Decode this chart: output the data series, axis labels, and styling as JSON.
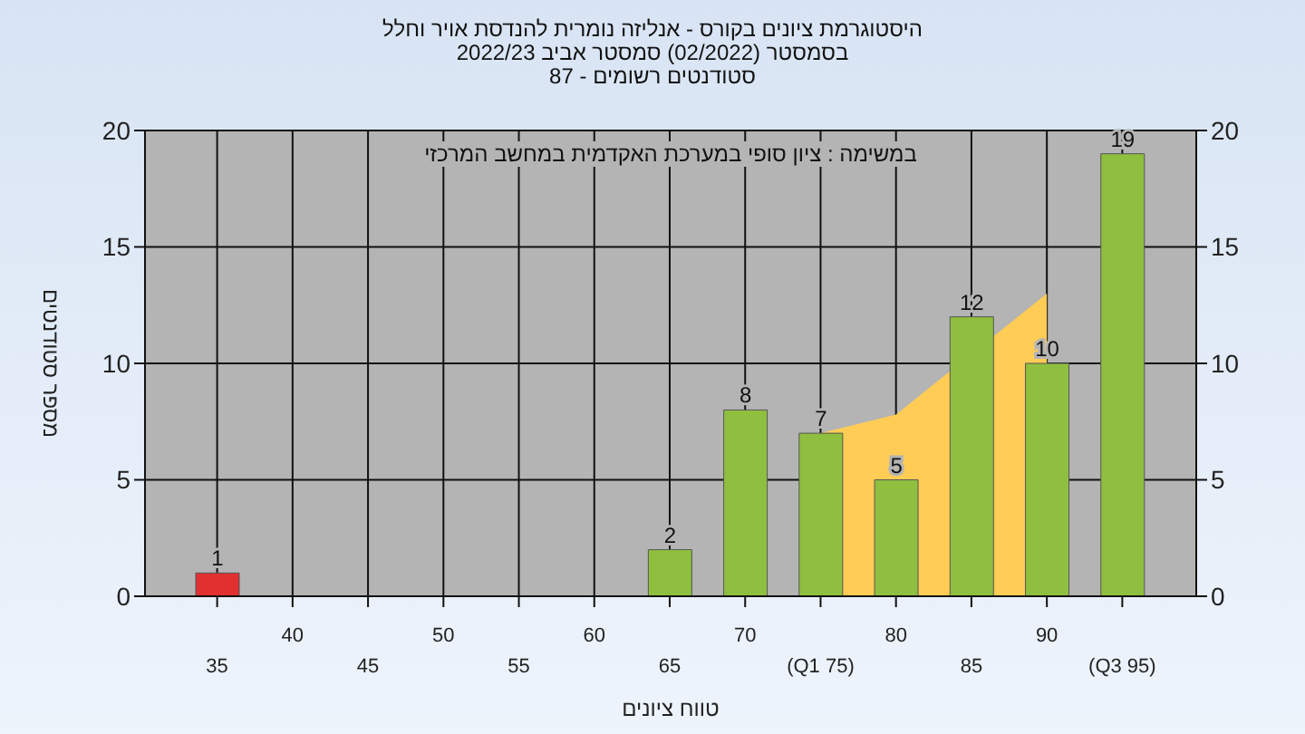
{
  "chart_data": {
    "type": "bar",
    "title": "היסטוגרמת ציונים בקורס - אנליזה נומרית להנדסת אויר וחלל",
    "subtitle": "בסמסטר  (02/2022)  סמסטר אביב 2022/23\nסטודנטים רשומים - 87",
    "xlabel": "טווח ציונים",
    "ylabel": "מספר סטודנטים",
    "annotations": [
      "במשימה : ציון סופי במערכת האקדמית במחשב המרכזי"
    ],
    "categories": [
      "35",
      "40",
      "45",
      "50",
      "55",
      "60",
      "65",
      "70",
      "(Q1 75)",
      "80",
      "85",
      "90",
      "(Q3 95)"
    ],
    "series": [
      {
        "type": "area",
        "color": "#ffcc55",
        "values": [
          null,
          null,
          null,
          null,
          null,
          null,
          null,
          null,
          7,
          7.8,
          null,
          13,
          null
        ]
      },
      {
        "colors": [
          "#e03030",
          "#8fbf3f",
          "#8fbf3f",
          "#8fbf3f",
          "#8fbf3f",
          "#8fbf3f",
          "#8fbf3f",
          "#8fbf3f",
          "#8fbf3f",
          "#8fbf3f",
          "#8fbf3f",
          "#8fbf3f",
          "#8fbf3f"
        ],
        "values": [
          1,
          0,
          0,
          0,
          0,
          0,
          2,
          8,
          7,
          5,
          12,
          10,
          19
        ],
        "value_labels": [
          "1",
          null,
          null,
          null,
          null,
          null,
          "2",
          "8",
          "7",
          "5",
          "12",
          "10",
          "19"
        ]
      }
    ],
    "ylim": [
      0,
      20
    ],
    "yticks": [
      0,
      5,
      10,
      15,
      20
    ],
    "y2lim": [
      0,
      20
    ],
    "y2ticks": [
      0,
      5,
      10,
      15,
      20
    ],
    "grid": true,
    "legend": false
  }
}
